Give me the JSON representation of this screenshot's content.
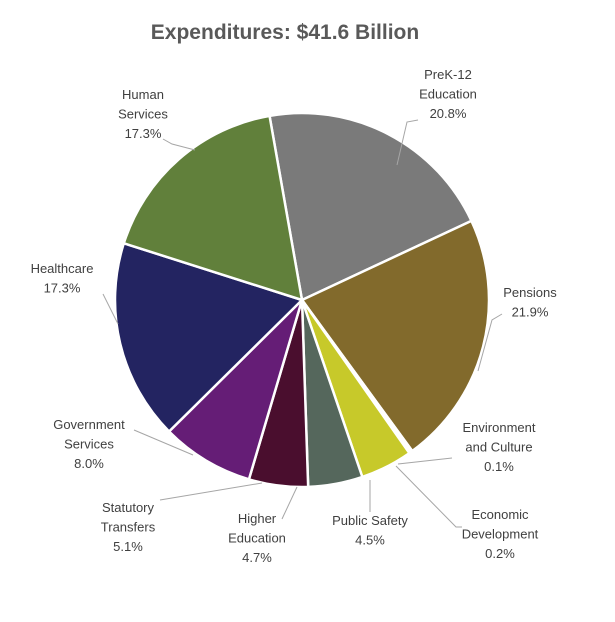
{
  "chart_data": {
    "type": "pie",
    "title": "Expenditures: $41.6 Billion",
    "slices": [
      {
        "label_lines": [
          "PreK-12",
          "Education"
        ],
        "value": 20.8,
        "value_text": "20.8%",
        "color": "#7a7a7a"
      },
      {
        "label_lines": [
          "Pensions"
        ],
        "value": 21.9,
        "value_text": "21.9%",
        "color": "#826a2c"
      },
      {
        "label_lines": [
          "Environment",
          "and Culture"
        ],
        "value": 0.1,
        "value_text": "0.1%",
        "color": "#e8e8e8"
      },
      {
        "label_lines": [
          "Economic",
          "Development"
        ],
        "value": 0.2,
        "value_text": "0.2%",
        "color": "#c9c9c9"
      },
      {
        "label_lines": [
          "Public Safety"
        ],
        "value": 4.5,
        "value_text": "4.5%",
        "color": "#c7c92a"
      },
      {
        "label_lines": [
          "Higher",
          "Education"
        ],
        "value": 4.7,
        "value_text": "4.7%",
        "color": "#55675c"
      },
      {
        "label_lines": [
          "Statutory",
          "Transfers"
        ],
        "value": 5.1,
        "value_text": "5.1%",
        "color": "#4a0e2e"
      },
      {
        "label_lines": [
          "Government",
          "Services"
        ],
        "value": 8.0,
        "value_text": "8.0%",
        "color": "#651d76"
      },
      {
        "label_lines": [
          "Healthcare"
        ],
        "value": 17.3,
        "value_text": "17.3%",
        "color": "#232461"
      },
      {
        "label_lines": [
          "Human",
          "Services"
        ],
        "value": 17.3,
        "value_text": "17.3%",
        "color": "#61803b"
      }
    ]
  }
}
